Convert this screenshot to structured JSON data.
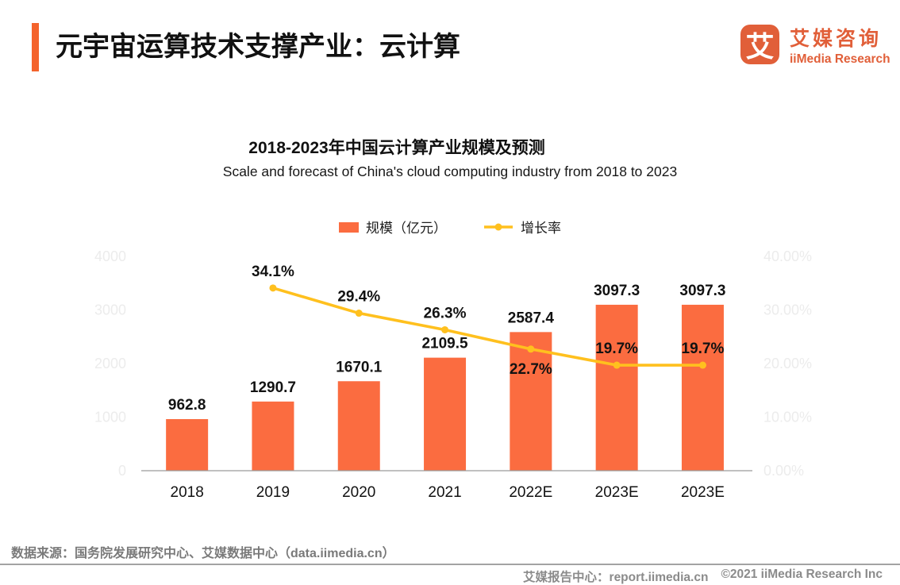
{
  "theme": {
    "accent_bar_color": "#F4632C",
    "logo_color": "#E15F39",
    "tick_color": "#ECECEC",
    "axis_line_color": "#9B9B9B"
  },
  "header": {
    "title": "元宇宙运算技术支撑产业：云计算",
    "logo": {
      "icon_char": "艾",
      "name_cn": "艾媒咨询",
      "name_en": "iiMedia Research"
    }
  },
  "chart_data": {
    "type": "bar+line",
    "title": "2018-2023年中国云计算产业规模及预测",
    "subtitle": "Scale and forecast of China's cloud computing industry from 2018 to 2023",
    "categories": [
      "2018",
      "2019",
      "2020",
      "2021",
      "2022E",
      "2023E",
      "2023E"
    ],
    "series": [
      {
        "name": "规模（亿元）",
        "type": "bar",
        "color": "#FB6C40",
        "values": [
          962.8,
          1290.7,
          1670.1,
          2109.5,
          2587.4,
          3097.3,
          3097.3
        ],
        "labels": [
          "962.8",
          "1290.7",
          "1670.1",
          "2109.5",
          "2587.4",
          "3097.3",
          "3097.3"
        ]
      },
      {
        "name": "增长率",
        "type": "line",
        "color": "#FFC01E",
        "values": [
          null,
          34.1,
          29.4,
          26.3,
          22.7,
          19.7,
          19.7
        ],
        "labels": [
          null,
          "34.1%",
          "29.4%",
          "26.3%",
          "22.7%",
          "19.7%",
          "19.7%"
        ],
        "label_below": [
          false,
          false,
          false,
          false,
          true,
          false,
          false
        ]
      }
    ],
    "y_axis": {
      "min": 0,
      "max": 4000,
      "ticks": [
        {
          "value": 0,
          "label": "0"
        },
        {
          "value": 1000,
          "label": "1000"
        },
        {
          "value": 2000,
          "label": "2000"
        },
        {
          "value": 3000,
          "label": "3000"
        },
        {
          "value": 4000,
          "label": "4000"
        }
      ]
    },
    "y2_axis": {
      "min": 0,
      "max": 40,
      "ticks": [
        {
          "value": 0,
          "label": "0.00%"
        },
        {
          "value": 10,
          "label": "10.00%"
        },
        {
          "value": 20,
          "label": "20.00%"
        },
        {
          "value": 30,
          "label": "30.00%"
        },
        {
          "value": 40,
          "label": "40.00%"
        }
      ]
    },
    "grid": false,
    "legend_position": "top-center"
  },
  "footer": {
    "source": "数据来源：国务院发展研究中心、艾媒数据中心（data.iimedia.cn）",
    "report_center": "艾媒报告中心：report.iimedia.cn",
    "copyright": "©2021  iiMedia Research  Inc"
  }
}
